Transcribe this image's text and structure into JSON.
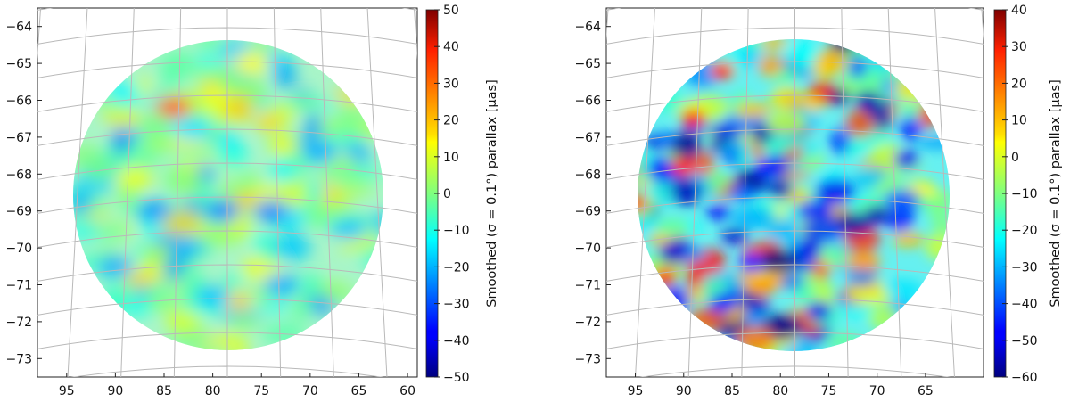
{
  "chart_data": [
    {
      "type": "heatmap",
      "projection": "orthographic sky map (RA vs Dec), circular field",
      "xlabel": "",
      "ylabel": "",
      "xlim": [
        98,
        59
      ],
      "ylim": [
        -73.5,
        -63.5
      ],
      "xticks": [
        95,
        90,
        85,
        80,
        75,
        70,
        65,
        60
      ],
      "xtick_labels": [
        "95",
        "90",
        "85",
        "80",
        "75",
        "70",
        "65",
        "60"
      ],
      "yticks": [
        -64,
        -65,
        -66,
        -67,
        -68,
        -69,
        -70,
        -71,
        -72,
        -73
      ],
      "ytick_labels": [
        "−64",
        "−65",
        "−66",
        "−67",
        "−68",
        "−69",
        "−70",
        "−71",
        "−72",
        "−73"
      ],
      "field_center": [
        79.5,
        -68.3
      ],
      "field_radius_deg": 4.4,
      "grid": true,
      "colormap": "jet",
      "colorbar": {
        "label": "Smoothed (σ = 0.1°) parallax [μas]",
        "range": [
          -50,
          50
        ],
        "ticks": [
          50,
          40,
          30,
          20,
          10,
          0,
          -10,
          -20,
          -30,
          -40,
          -50
        ],
        "tick_labels": [
          "50",
          "40",
          "30",
          "20",
          "10",
          "0",
          "−10",
          "−20",
          "−30",
          "−40",
          "−50"
        ]
      },
      "features": [
        {
          "ra": 84,
          "dec": -66.2,
          "value": 28
        },
        {
          "ra": 76,
          "dec": -65.0,
          "value": 12
        },
        {
          "ra": 88,
          "dec": -68.1,
          "value": 10
        },
        {
          "ra": 72,
          "dec": -68.6,
          "value": 8
        },
        {
          "ra": 83,
          "dec": -72.0,
          "value": 8
        },
        {
          "ra": 79,
          "dec": -69.0,
          "value": -24
        },
        {
          "ra": 74,
          "dec": -69.0,
          "value": -24
        },
        {
          "ra": 86,
          "dec": -69.0,
          "value": -22
        },
        {
          "ra": 69,
          "dec": -67.4,
          "value": -20
        },
        {
          "ra": 90,
          "dec": -70.5,
          "value": -20
        },
        {
          "ra": 73,
          "dec": -71.0,
          "value": -20
        },
        {
          "ra": 80,
          "dec": -71.3,
          "value": -18
        },
        {
          "ra": 82,
          "dec": -66.8,
          "value": -15
        },
        {
          "ra": 66,
          "dec": -69.5,
          "value": -18
        }
      ]
    },
    {
      "type": "heatmap",
      "projection": "orthographic sky map (RA vs Dec), circular field",
      "xlabel": "",
      "ylabel": "",
      "xlim": [
        98,
        59
      ],
      "ylim": [
        -73.5,
        -63.5
      ],
      "xticks": [
        95,
        90,
        85,
        80,
        75,
        70,
        65
      ],
      "xtick_labels": [
        "95",
        "90",
        "85",
        "80",
        "75",
        "70",
        "65"
      ],
      "yticks": [
        -64,
        -65,
        -66,
        -67,
        -68,
        -69,
        -70,
        -71,
        -72,
        -73
      ],
      "ytick_labels": [
        "−64",
        "−65",
        "−66",
        "−67",
        "−68",
        "−69",
        "−70",
        "−71",
        "−72",
        "−73"
      ],
      "field_center": [
        79.5,
        -68.3
      ],
      "field_radius_deg": 4.4,
      "grid": true,
      "colormap": "jet",
      "colorbar": {
        "label": "Smoothed (σ = 0.1°) parallax [μas]",
        "range": [
          -60,
          40
        ],
        "ticks": [
          40,
          30,
          20,
          10,
          0,
          -10,
          -20,
          -30,
          -40,
          -50,
          -60
        ],
        "tick_labels": [
          "40",
          "30",
          "20",
          "10",
          "0",
          "−10",
          "−20",
          "−30",
          "−40",
          "−50",
          "−60"
        ]
      },
      "features": [
        {
          "ra": 96,
          "dec": -67.8,
          "value": 30
        },
        {
          "ra": 89,
          "dec": -66.5,
          "value": 28
        },
        {
          "ra": 90,
          "dec": -67.8,
          "value": 25
        },
        {
          "ra": 92,
          "dec": -70.8,
          "value": 22
        },
        {
          "ra": 86,
          "dec": -65.2,
          "value": 22
        },
        {
          "ra": 95,
          "dec": -68.8,
          "value": 20
        },
        {
          "ra": 80,
          "dec": -68.4,
          "value": -55
        },
        {
          "ra": 73,
          "dec": -64.1,
          "value": -55
        },
        {
          "ra": 71,
          "dec": -66.0,
          "value": -55
        },
        {
          "ra": 70,
          "dec": -69.1,
          "value": -55
        },
        {
          "ra": 67,
          "dec": -67.6,
          "value": -50
        },
        {
          "ra": 76,
          "dec": -71.7,
          "value": -50
        },
        {
          "ra": 83,
          "dec": -70.4,
          "value": -45
        },
        {
          "ra": 77,
          "dec": -70.0,
          "value": -50
        },
        {
          "ra": 86,
          "dec": -71.5,
          "value": -45
        }
      ]
    }
  ]
}
